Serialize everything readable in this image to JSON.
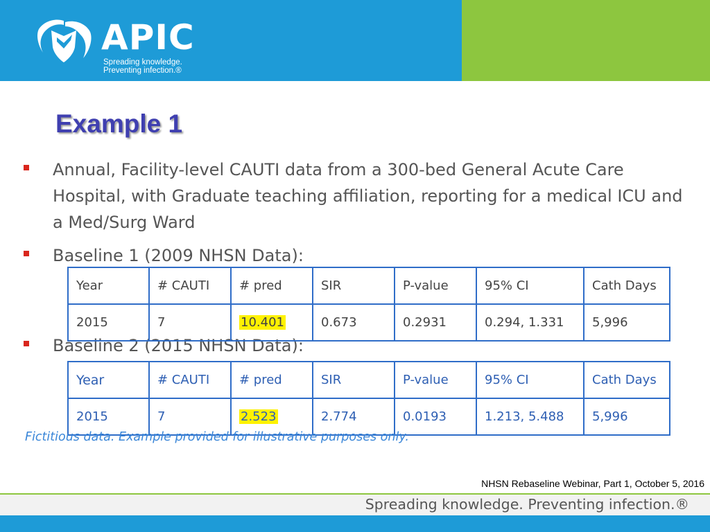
{
  "header": {
    "logo_word": "APIC",
    "tagline_line1": "Spreading knowledge.",
    "tagline_line2": "Preventing infection.®"
  },
  "title": "Example 1",
  "bullets": [
    "Annual, Facility-level CAUTI data from a 300-bed General Acute Care Hospital, with Graduate teaching affiliation, reporting for a medical ICU and a Med/Surg Ward",
    "Baseline 1 (2009 NHSN Data):",
    "Baseline 2 (2015 NHSN Data):"
  ],
  "table1": {
    "headers": [
      "Year",
      "# CAUTI",
      "# pred",
      "SIR",
      "P-value",
      "95% CI",
      "Cath Days"
    ],
    "row": [
      "2015",
      "7",
      "10.401",
      "0.673",
      "0.2931",
      "0.294, 1.331",
      "5,996"
    ]
  },
  "table2": {
    "headers": [
      "Year",
      "# CAUTI",
      "# pred",
      "SIR",
      "P-value",
      "95% CI",
      "Cath Days"
    ],
    "row": [
      "2015",
      "7",
      "2.523",
      "2.774",
      "0.0193",
      "1.213, 5.488",
      "5,996"
    ]
  },
  "footnote": "Fictitious data. Example provided for illustrative purposes only.",
  "credit": "NHSN Rebaseline Webinar, Part 1, October 5, 2016",
  "footer_tagline": "Spreading knowledge. Preventing infection.®",
  "colors": {
    "header_blue": "#1e9bd7",
    "header_green": "#8dc63f",
    "title": "#3f3fb0",
    "bullet": "#d9261c",
    "table_border": "#2f6dc8",
    "highlight": "#fff200"
  }
}
